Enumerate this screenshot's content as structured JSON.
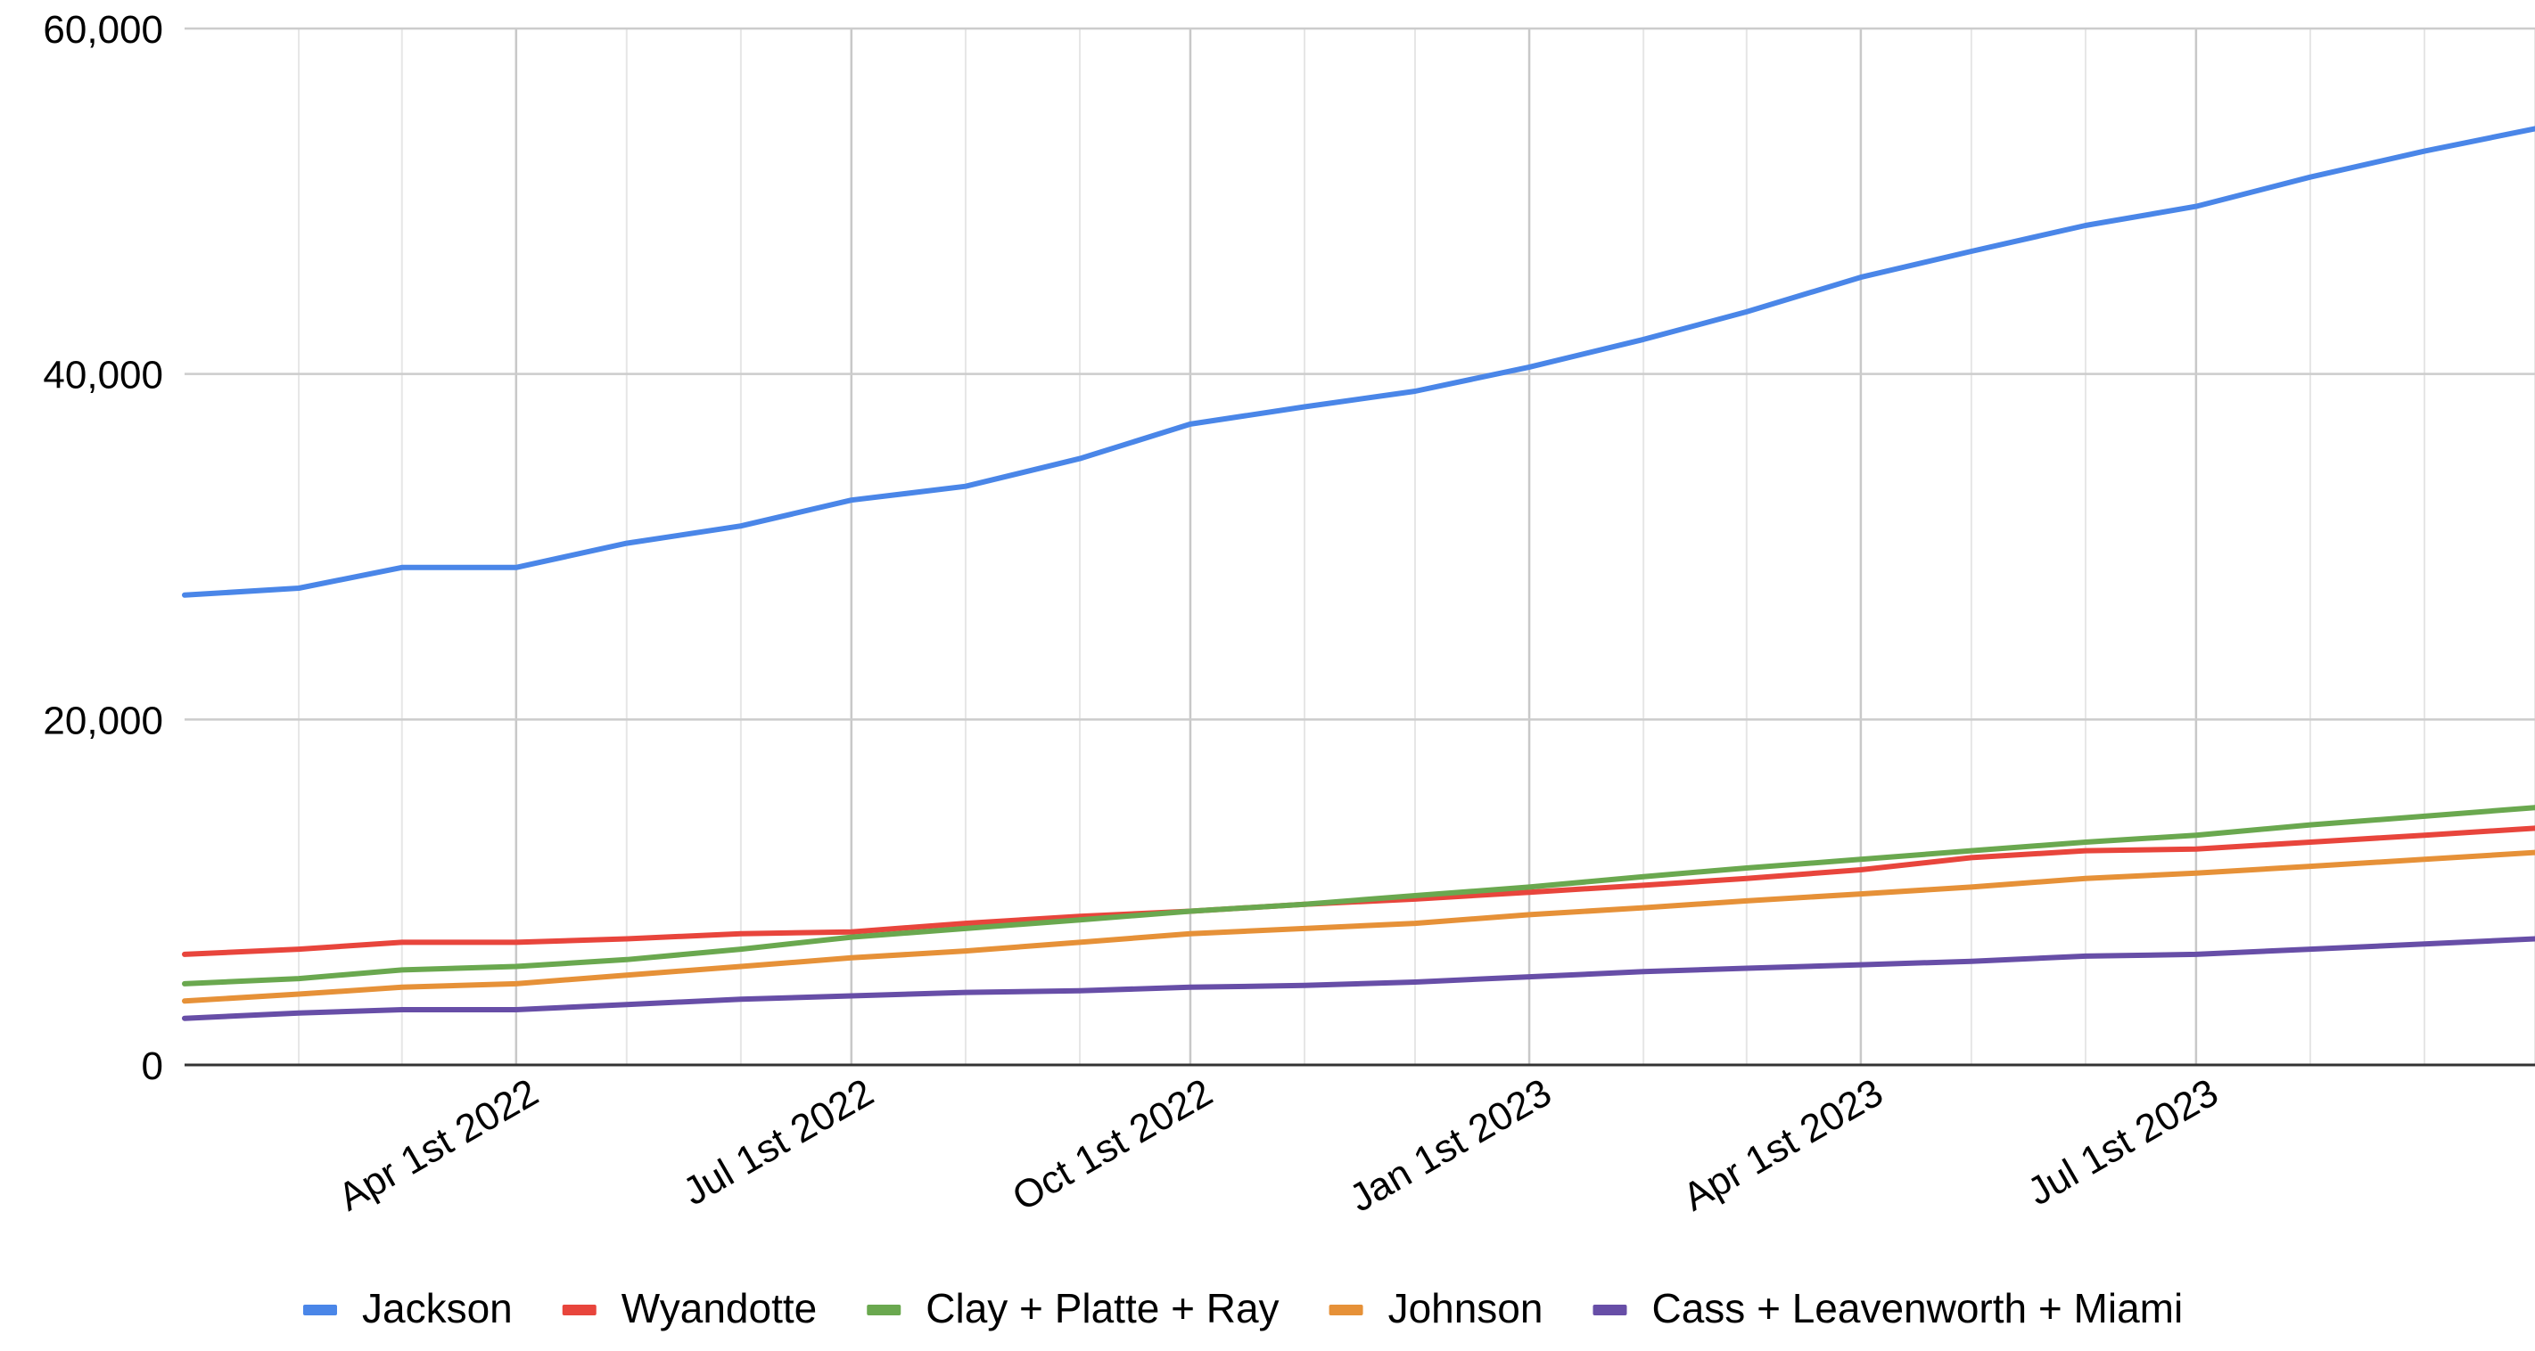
{
  "chart_data": {
    "type": "line",
    "title": "",
    "xlabel": "",
    "ylabel": "",
    "ylim": [
      0,
      60000
    ],
    "xlim": [
      "2022-01-01",
      "2023-10-01"
    ],
    "y_ticks": [
      0,
      20000,
      40000,
      60000
    ],
    "y_tick_labels": [
      "0",
      "20,000",
      "40,000",
      "60,000"
    ],
    "x_tick_labels": [
      {
        "date": "2022-04-01",
        "label": "Apr 1st 2022"
      },
      {
        "date": "2022-07-01",
        "label": "Jul 1st 2022"
      },
      {
        "date": "2022-10-01",
        "label": "Oct 1st 2022"
      },
      {
        "date": "2023-01-01",
        "label": "Jan 1st 2023"
      },
      {
        "date": "2023-04-01",
        "label": "Apr 1st 2023"
      },
      {
        "date": "2023-07-01",
        "label": "Jul 1st 2023"
      }
    ],
    "grid": true,
    "legend_position": "bottom",
    "x": [
      "2022-01-01",
      "2022-02-01",
      "2022-03-01",
      "2022-04-01",
      "2022-05-01",
      "2022-06-01",
      "2022-07-01",
      "2022-08-01",
      "2022-09-01",
      "2022-10-01",
      "2022-11-01",
      "2022-12-01",
      "2023-01-01",
      "2023-02-01",
      "2023-03-01",
      "2023-04-01",
      "2023-05-01",
      "2023-06-01",
      "2023-07-01",
      "2023-08-01",
      "2023-09-01",
      "2023-10-01"
    ],
    "series": [
      {
        "name": "Jackson",
        "color": "#4a86e8",
        "values": [
          27200,
          27600,
          28800,
          28800,
          30200,
          31200,
          32700,
          33500,
          35100,
          37100,
          38100,
          39000,
          40400,
          42000,
          43600,
          45600,
          47100,
          48600,
          49700,
          51400,
          52900,
          54200
        ]
      },
      {
        "name": "Wyandotte",
        "color": "#e8453c",
        "values": [
          6400,
          6700,
          7100,
          7100,
          7300,
          7600,
          7700,
          8200,
          8600,
          8900,
          9300,
          9600,
          10000,
          10400,
          10800,
          11300,
          12000,
          12400,
          12500,
          12900,
          13300,
          13700
        ]
      },
      {
        "name": "Clay + Platte + Ray",
        "color": "#6aa84f",
        "values": [
          4700,
          5000,
          5500,
          5700,
          6100,
          6700,
          7400,
          7900,
          8400,
          8900,
          9300,
          9800,
          10300,
          10900,
          11400,
          11900,
          12400,
          12900,
          13300,
          13900,
          14400,
          14900
        ]
      },
      {
        "name": "Johnson",
        "color": "#e69138",
        "values": [
          3700,
          4100,
          4500,
          4700,
          5200,
          5700,
          6200,
          6600,
          7100,
          7600,
          7900,
          8200,
          8700,
          9100,
          9500,
          9900,
          10300,
          10800,
          11100,
          11500,
          11900,
          12300
        ]
      },
      {
        "name": "Cass + Leavenworth + Miami",
        "color": "#674ea7",
        "values": [
          2700,
          3000,
          3200,
          3200,
          3500,
          3800,
          4000,
          4200,
          4300,
          4500,
          4600,
          4800,
          5100,
          5400,
          5600,
          5800,
          6000,
          6300,
          6400,
          6700,
          7000,
          7300
        ]
      }
    ]
  }
}
